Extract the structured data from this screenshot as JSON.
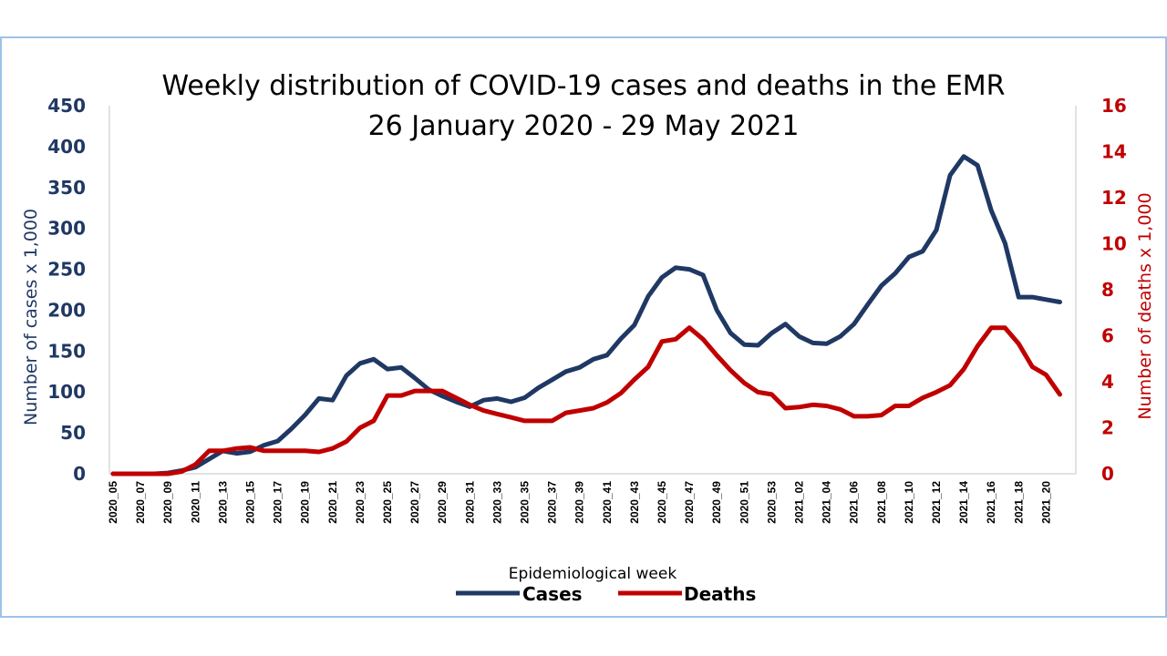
{
  "chart_data": {
    "type": "line",
    "title": "Weekly distribution of COVID-19 cases and deaths in the EMR",
    "subtitle": "26 January 2020 - 29 May 2021",
    "xlabel": "Epidemiological week",
    "ylabel_left": "Number of cases x 1,000",
    "ylabel_right": "Number of deaths x 1,000",
    "ylim_left": [
      0,
      450
    ],
    "ylim_right": [
      0,
      16
    ],
    "yticks_left": [
      "0",
      "50",
      "100",
      "150",
      "200",
      "250",
      "300",
      "350",
      "400",
      "450"
    ],
    "yticks_right": [
      "0",
      "2",
      "4",
      "6",
      "8",
      "10",
      "12",
      "14",
      "16"
    ],
    "grid": false,
    "legend_position": "bottom",
    "colors": {
      "cases": "#1f3864",
      "deaths": "#c00000"
    },
    "x": [
      "2020_05",
      "2020_06",
      "2020_07",
      "2020_08",
      "2020_09",
      "2020_10",
      "2020_11",
      "2020_12",
      "2020_13",
      "2020_14",
      "2020_15",
      "2020_16",
      "2020_17",
      "2020_18",
      "2020_19",
      "2020_20",
      "2020_21",
      "2020_22",
      "2020_23",
      "2020_24",
      "2020_25",
      "2020_26",
      "2020_27",
      "2020_28",
      "2020_29",
      "2020_30",
      "2020_31",
      "2020_32",
      "2020_33",
      "2020_34",
      "2020_35",
      "2020_36",
      "2020_37",
      "2020_38",
      "2020_39",
      "2020_40",
      "2020_41",
      "2020_42",
      "2020_43",
      "2020_44",
      "2020_45",
      "2020_46",
      "2020_47",
      "2020_48",
      "2020_49",
      "2020_50",
      "2020_51",
      "2020_52",
      "2020_53",
      "2021_01",
      "2021_02",
      "2021_03",
      "2021_04",
      "2021_05",
      "2021_06",
      "2021_07",
      "2021_08",
      "2021_09",
      "2021_10",
      "2021_11",
      "2021_12",
      "2021_13",
      "2021_14",
      "2021_15",
      "2021_16",
      "2021_17",
      "2021_18",
      "2021_19",
      "2021_20",
      "2021_21"
    ],
    "xtick_labels": [
      "2020_05",
      "2020_07",
      "2020_09",
      "2020_11",
      "2020_13",
      "2020_15",
      "2020_17",
      "2020_19",
      "2020_21",
      "2020_23",
      "2020_25",
      "2020_27",
      "2020_29",
      "2020_31",
      "2020_33",
      "2020_35",
      "2020_37",
      "2020_39",
      "2020_41",
      "2020_43",
      "2020_45",
      "2020_47",
      "2020_49",
      "2020_51",
      "2020_53",
      "2021_02",
      "2021_04",
      "2021_06",
      "2021_08",
      "2021_10",
      "2021_12",
      "2021_14",
      "2021_16",
      "2021_18",
      "2021_20"
    ],
    "series": [
      {
        "name": "Cases",
        "axis": "left",
        "values": [
          0,
          0,
          0,
          0,
          1,
          4,
          8,
          18,
          28,
          25,
          27,
          35,
          40,
          55,
          72,
          92,
          90,
          120,
          135,
          140,
          128,
          130,
          117,
          103,
          95,
          88,
          82,
          90,
          92,
          88,
          93,
          105,
          115,
          125,
          130,
          140,
          145,
          165,
          182,
          217,
          240,
          252,
          250,
          243,
          200,
          172,
          158,
          157,
          172,
          183,
          168,
          160,
          159,
          168,
          183,
          207,
          230,
          245,
          265,
          272,
          298,
          365,
          388,
          377,
          322,
          282,
          216,
          216,
          213,
          210
        ],
        "unit": "thousand"
      },
      {
        "name": "Deaths",
        "axis": "right",
        "values": [
          0,
          0,
          0,
          0,
          0,
          0.1,
          0.4,
          1.0,
          1.0,
          1.1,
          1.15,
          1.0,
          1.0,
          1.0,
          1.0,
          0.95,
          1.1,
          1.4,
          2.0,
          2.3,
          3.4,
          3.4,
          3.6,
          3.6,
          3.6,
          3.3,
          3.0,
          2.75,
          2.6,
          2.45,
          2.3,
          2.3,
          2.3,
          2.65,
          2.75,
          2.85,
          3.1,
          3.5,
          4.1,
          4.65,
          5.75,
          5.85,
          6.35,
          5.85,
          5.15,
          4.5,
          3.95,
          3.55,
          3.45,
          2.85,
          2.9,
          3.0,
          2.95,
          2.8,
          2.5,
          2.5,
          2.55,
          2.95,
          2.95,
          3.3,
          3.55,
          3.85,
          4.55,
          5.55,
          6.35,
          6.35,
          5.65,
          4.65,
          4.3,
          3.45
        ],
        "unit": "thousand"
      }
    ]
  }
}
